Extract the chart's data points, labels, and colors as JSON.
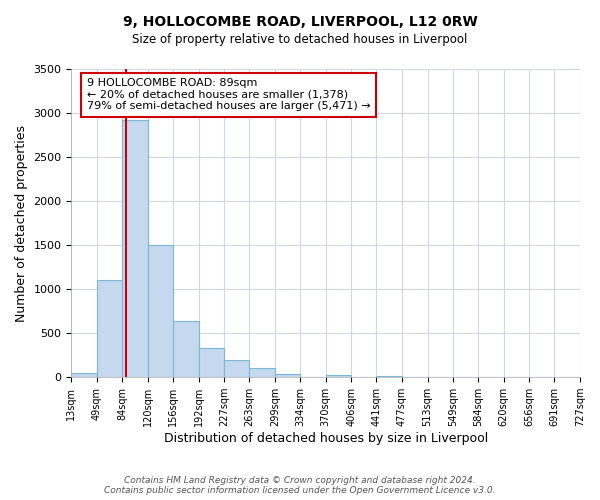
{
  "title": "9, HOLLOCOMBE ROAD, LIVERPOOL, L12 0RW",
  "subtitle": "Size of property relative to detached houses in Liverpool",
  "xlabel": "Distribution of detached houses by size in Liverpool",
  "ylabel": "Number of detached properties",
  "bar_color": "#c5d8ed",
  "bar_edge_color": "#7ab8d9",
  "background_color": "#ffffff",
  "grid_color": "#d0d8e8",
  "vline_color": "#cc0000",
  "vline_x": 89,
  "annotation_line1": "9 HOLLOCOMBE ROAD: 89sqm",
  "annotation_line2": "← 20% of detached houses are smaller (1,378)",
  "annotation_line3": "79% of semi-detached houses are larger (5,471) →",
  "annotation_box_color": "#ffffff",
  "annotation_box_edge_color": "#cc0000",
  "bin_edges": [
    13,
    49,
    84,
    120,
    156,
    192,
    227,
    263,
    299,
    334,
    370,
    406,
    441,
    477,
    513,
    549,
    584,
    620,
    656,
    691,
    727
  ],
  "bin_heights": [
    50,
    1100,
    2920,
    1500,
    640,
    330,
    200,
    100,
    40,
    5,
    25,
    0,
    10,
    0,
    0,
    0,
    0,
    0,
    0,
    0
  ],
  "ylim": [
    0,
    3500
  ],
  "yticks": [
    0,
    500,
    1000,
    1500,
    2000,
    2500,
    3000,
    3500
  ],
  "footer_line1": "Contains HM Land Registry data © Crown copyright and database right 2024.",
  "footer_line2": "Contains public sector information licensed under the Open Government Licence v3.0."
}
